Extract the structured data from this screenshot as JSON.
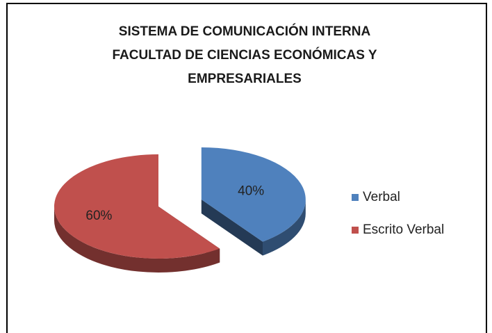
{
  "chart_data": {
    "type": "pie",
    "title": [
      "SISTEMA DE COMUNICACIÓN INTERNA",
      "FACULTAD DE CIENCIAS ECONÓMICAS Y",
      "EMPRESARIALES"
    ],
    "categories": [
      "Verbal",
      "Escrito Verbal"
    ],
    "values": [
      40,
      60
    ],
    "value_labels": [
      "40%",
      "60%"
    ],
    "colors": [
      "#4f81bd",
      "#c0504d"
    ],
    "legend": "right"
  }
}
